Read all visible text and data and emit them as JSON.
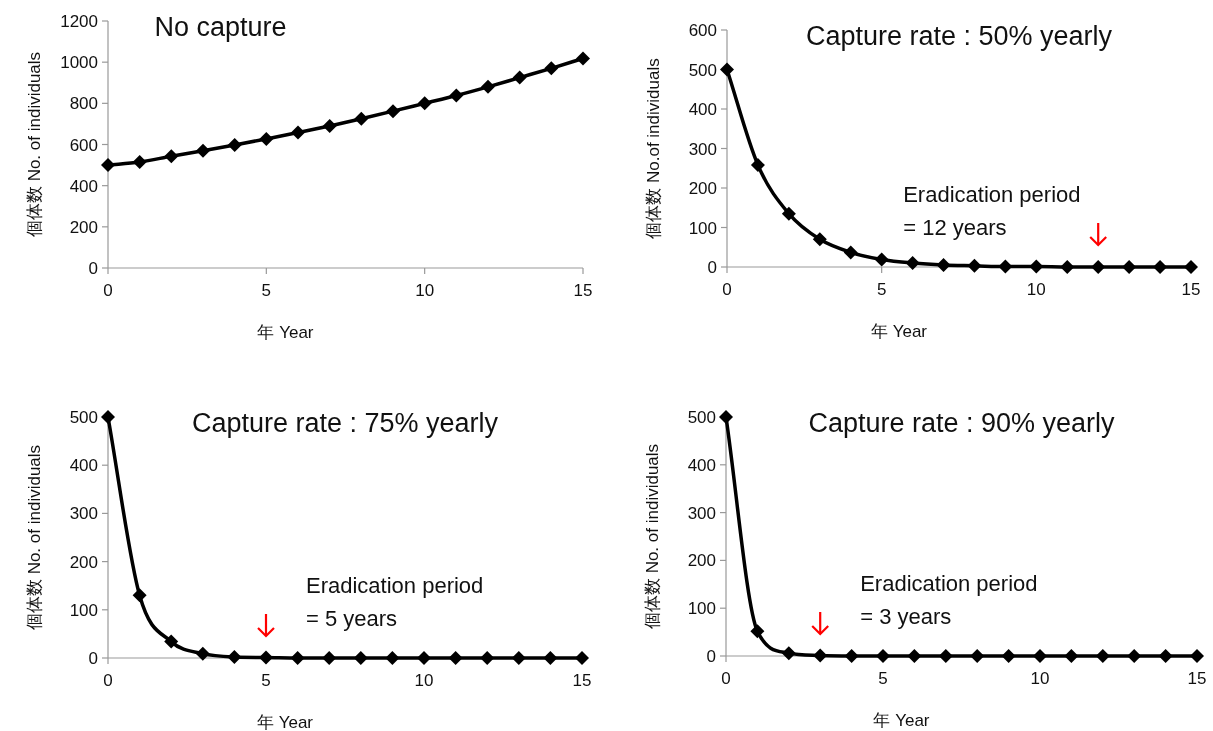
{
  "chart_data": [
    {
      "type": "line",
      "title": "No capture",
      "xlabel": "年  Year",
      "ylabel": "個体数  No. of individuals",
      "x": [
        0,
        1,
        2,
        3,
        4,
        5,
        6,
        7,
        8,
        9,
        10,
        11,
        12,
        13,
        14,
        15
      ],
      "series": [
        {
          "color": "#000000",
          "values": [
            500,
            515,
            543,
            570,
            598,
            627,
            658,
            690,
            725,
            762,
            800,
            838,
            880,
            925,
            970,
            1018
          ]
        }
      ],
      "xlim": [
        0,
        15
      ],
      "xticks": [
        0,
        5,
        10,
        15
      ],
      "ylim": [
        0,
        1200
      ],
      "yticks": [
        0,
        200,
        400,
        600,
        800,
        1000,
        1200
      ],
      "marker": "diamond",
      "line_style": "solid"
    },
    {
      "type": "line",
      "title": "Capture rate :  50% yearly",
      "xlabel": "年  Year",
      "ylabel": "個体数  No.of individuals",
      "x": [
        0,
        1,
        2,
        3,
        4,
        5,
        6,
        7,
        8,
        9,
        10,
        11,
        12,
        13,
        14,
        15
      ],
      "series": [
        {
          "color": "#000000",
          "values": [
            500,
            258,
            135,
            70,
            37,
            19,
            10,
            5,
            3,
            1,
            1,
            0,
            0,
            0,
            0,
            0
          ]
        }
      ],
      "xlim": [
        0,
        15
      ],
      "xticks": [
        0,
        5,
        10,
        15
      ],
      "ylim": [
        0,
        600
      ],
      "yticks": [
        0,
        100,
        200,
        300,
        400,
        500,
        600
      ],
      "marker": "diamond",
      "line_style": "solid",
      "annotations": [
        {
          "text": "Eradication period\n= 12 years",
          "x": 12,
          "y": 0
        }
      ]
    },
    {
      "type": "line",
      "title": "Capture rate :  75% yearly",
      "xlabel": "年  Year",
      "ylabel": "個体数  No. of individuals",
      "x": [
        0,
        1,
        2,
        3,
        4,
        5,
        6,
        7,
        8,
        9,
        10,
        11,
        12,
        13,
        14,
        15
      ],
      "series": [
        {
          "color": "#000000",
          "values": [
            500,
            130,
            34,
            9,
            2,
            1,
            0,
            0,
            0,
            0,
            0,
            0,
            0,
            0,
            0,
            0
          ]
        }
      ],
      "xlim": [
        0,
        15
      ],
      "xticks": [
        0,
        5,
        10,
        15
      ],
      "ylim": [
        0,
        500
      ],
      "yticks": [
        0,
        100,
        200,
        300,
        400,
        500
      ],
      "marker": "diamond",
      "line_style": "solid",
      "annotations": [
        {
          "text": "Eradication period\n= 5 years",
          "x": 5,
          "y": 0
        }
      ]
    },
    {
      "type": "line",
      "title": "Capture rate :  90% yearly",
      "xlabel": "年  Year",
      "ylabel": "個体数  No. of individuals",
      "x": [
        0,
        1,
        2,
        3,
        4,
        5,
        6,
        7,
        8,
        9,
        10,
        11,
        12,
        13,
        14,
        15
      ],
      "series": [
        {
          "color": "#000000",
          "values": [
            500,
            52,
            6,
            1,
            0,
            0,
            0,
            0,
            0,
            0,
            0,
            0,
            0,
            0,
            0,
            0
          ]
        }
      ],
      "xlim": [
        0,
        15
      ],
      "xticks": [
        0,
        5,
        10,
        15
      ],
      "ylim": [
        0,
        500
      ],
      "yticks": [
        0,
        100,
        200,
        300,
        400,
        500
      ],
      "marker": "diamond",
      "line_style": "solid",
      "annotations": [
        {
          "text": "Eradication period\n= 3 years",
          "x": 3,
          "y": 0
        }
      ]
    }
  ]
}
